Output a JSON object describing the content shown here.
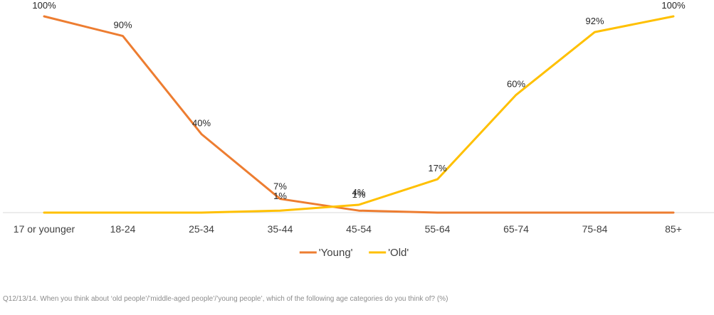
{
  "chart_data": {
    "type": "line",
    "categories": [
      "17 or younger",
      "18-24",
      "25-34",
      "35-44",
      "45-54",
      "55-64",
      "65-74",
      "75-84",
      "85+"
    ],
    "series": [
      {
        "name": "'Young'",
        "color": "#ED7D31",
        "values": [
          100,
          90,
          40,
          7,
          1,
          0,
          0,
          0,
          0
        ],
        "labels": [
          "100%",
          "90%",
          "40%",
          "7%",
          "1%",
          "",
          "",
          "",
          ""
        ]
      },
      {
        "name": "'Old'",
        "color": "#FFC000",
        "values": [
          0,
          0,
          0,
          1,
          4,
          17,
          60,
          92,
          100
        ],
        "labels": [
          "",
          "",
          "",
          "1%",
          "4%",
          "17%",
          "60%",
          "92%",
          "100%"
        ]
      }
    ],
    "ylim": [
      0,
      100
    ],
    "grid": false,
    "legend_position": "bottom",
    "axis_color": "#D9D9D9"
  },
  "footnote": "Q12/13/14. When you think about ‘old people’/’middle-aged people’/’young people’, which of the following age categories do you think of? (%)"
}
